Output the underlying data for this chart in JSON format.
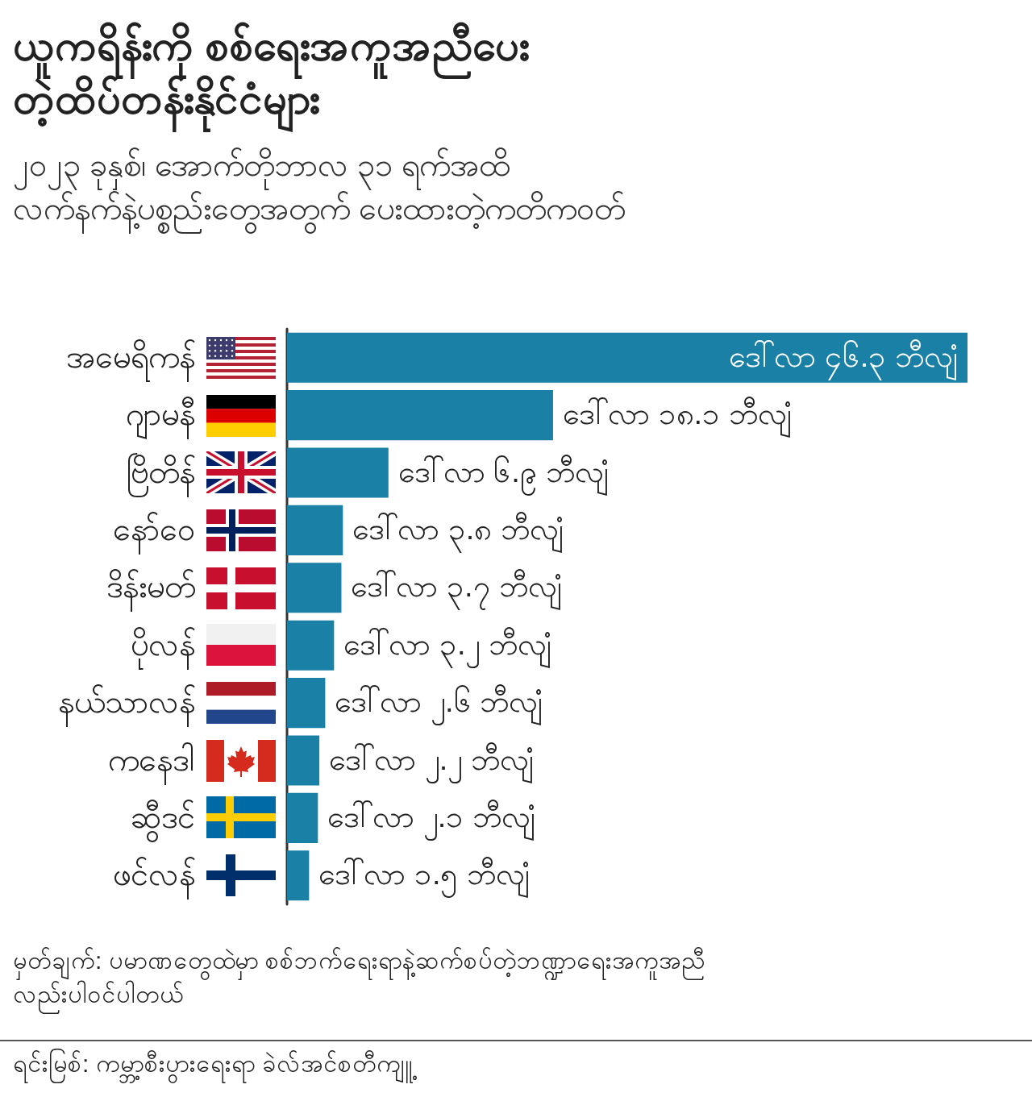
{
  "chart_data": {
    "type": "bar",
    "orientation": "horizontal",
    "title": "ယူကရိန်းကို စစ်ရေးအကူအညီပေး\nတဲ့ထိပ်တန်းနိုင်ငံများ",
    "subtitle": "၂၀၂၃ ခုနှစ်၊ အောက်တိုဘာလ ၃၁ ရက်အထိ\nလက်နက်နဲ့ပစ္စည်းတွေအတွက် ပေးထားတဲ့ကတိကဝတ်",
    "categories": [
      "အမေရိကန်",
      "ဂျာမနီ",
      "ဗြိတိန်",
      "နော်ဝေ",
      "ဒိန်းမတ်",
      "ပိုလန်",
      "နယ်သာလန်",
      "ကနေဒါ",
      "ဆွီဒင်",
      "ဖင်လန်"
    ],
    "values": [
      46.3,
      18.1,
      6.9,
      3.8,
      3.7,
      3.2,
      2.6,
      2.2,
      2.1,
      1.5
    ],
    "color": "#1a80a6",
    "value_labels": [
      "ဒေါ်လာ ၄၆.၃ ဘီလျံ",
      "ဒေါ်လာ ၁၈.၁ ဘီလျံ",
      "ဒေါ်လာ ၆.၉ ဘီလျံ",
      "ဒေါ်လာ ၃.၈ ဘီလျံ",
      "ဒေါ်လာ ၃.၇ ဘီလျံ",
      "ဒေါ်လာ ၃.၂ ဘီလျံ",
      "ဒေါ်လာ ၂.၆ ဘီလျံ",
      "ဒေါ်လာ ၂.၂ ဘီလျံ",
      "ဒေါ်လာ ၂.၁ ဘီလျံ",
      "ဒေါ်လာ ၁.၅ ဘီလျံ"
    ],
    "tick_labels": "y",
    "annotations": [
      "မှတ်ချက်: ပမာဏတွေထဲမှာ စစ်ဘက်ရေးရာနဲ့ဆက်စပ်တဲ့ဘဏ္ဍာရေးအကူအညီ\nလည်းပါဝင်ပါတယ်",
      "ရင်းမြစ်: ကမ္ဘာ့စီးပွားရေးရာ ခဲလ်အင်စတီကျူ့"
    ]
  }
}
